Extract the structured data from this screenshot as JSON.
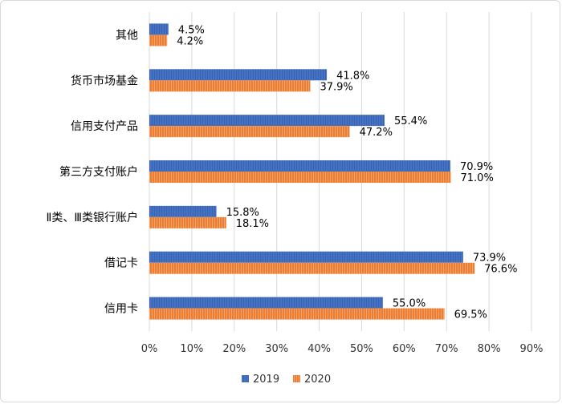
{
  "chart_data": {
    "type": "bar",
    "orientation": "horizontal",
    "categories": [
      "其他",
      "货币市场基金",
      "信用支付产品",
      "第三方支付账户",
      "Ⅱ类、Ⅲ类银行账户",
      "借记卡",
      "信用卡"
    ],
    "series": [
      {
        "name": "2019",
        "values": [
          4.5,
          41.8,
          55.4,
          70.9,
          15.8,
          73.9,
          55.0
        ],
        "labels": [
          "4.5%",
          "41.8%",
          "55.4%",
          "70.9%",
          "15.8%",
          "73.9%",
          "55.0%"
        ],
        "color": "#4472C4"
      },
      {
        "name": "2020",
        "values": [
          4.2,
          37.9,
          47.2,
          71.0,
          18.1,
          76.6,
          69.5
        ],
        "labels": [
          "4.2%",
          "37.9%",
          "47.2%",
          "71.0%",
          "18.1%",
          "76.6%",
          "69.5%"
        ],
        "color": "#ED7D31"
      }
    ],
    "xlim": [
      0,
      90
    ],
    "xticks": [
      "0%",
      "10%",
      "20%",
      "30%",
      "40%",
      "50%",
      "60%",
      "70%",
      "80%",
      "90%"
    ],
    "grid": true,
    "legend_position": "bottom",
    "gridline_color": "#d9d9d9"
  }
}
